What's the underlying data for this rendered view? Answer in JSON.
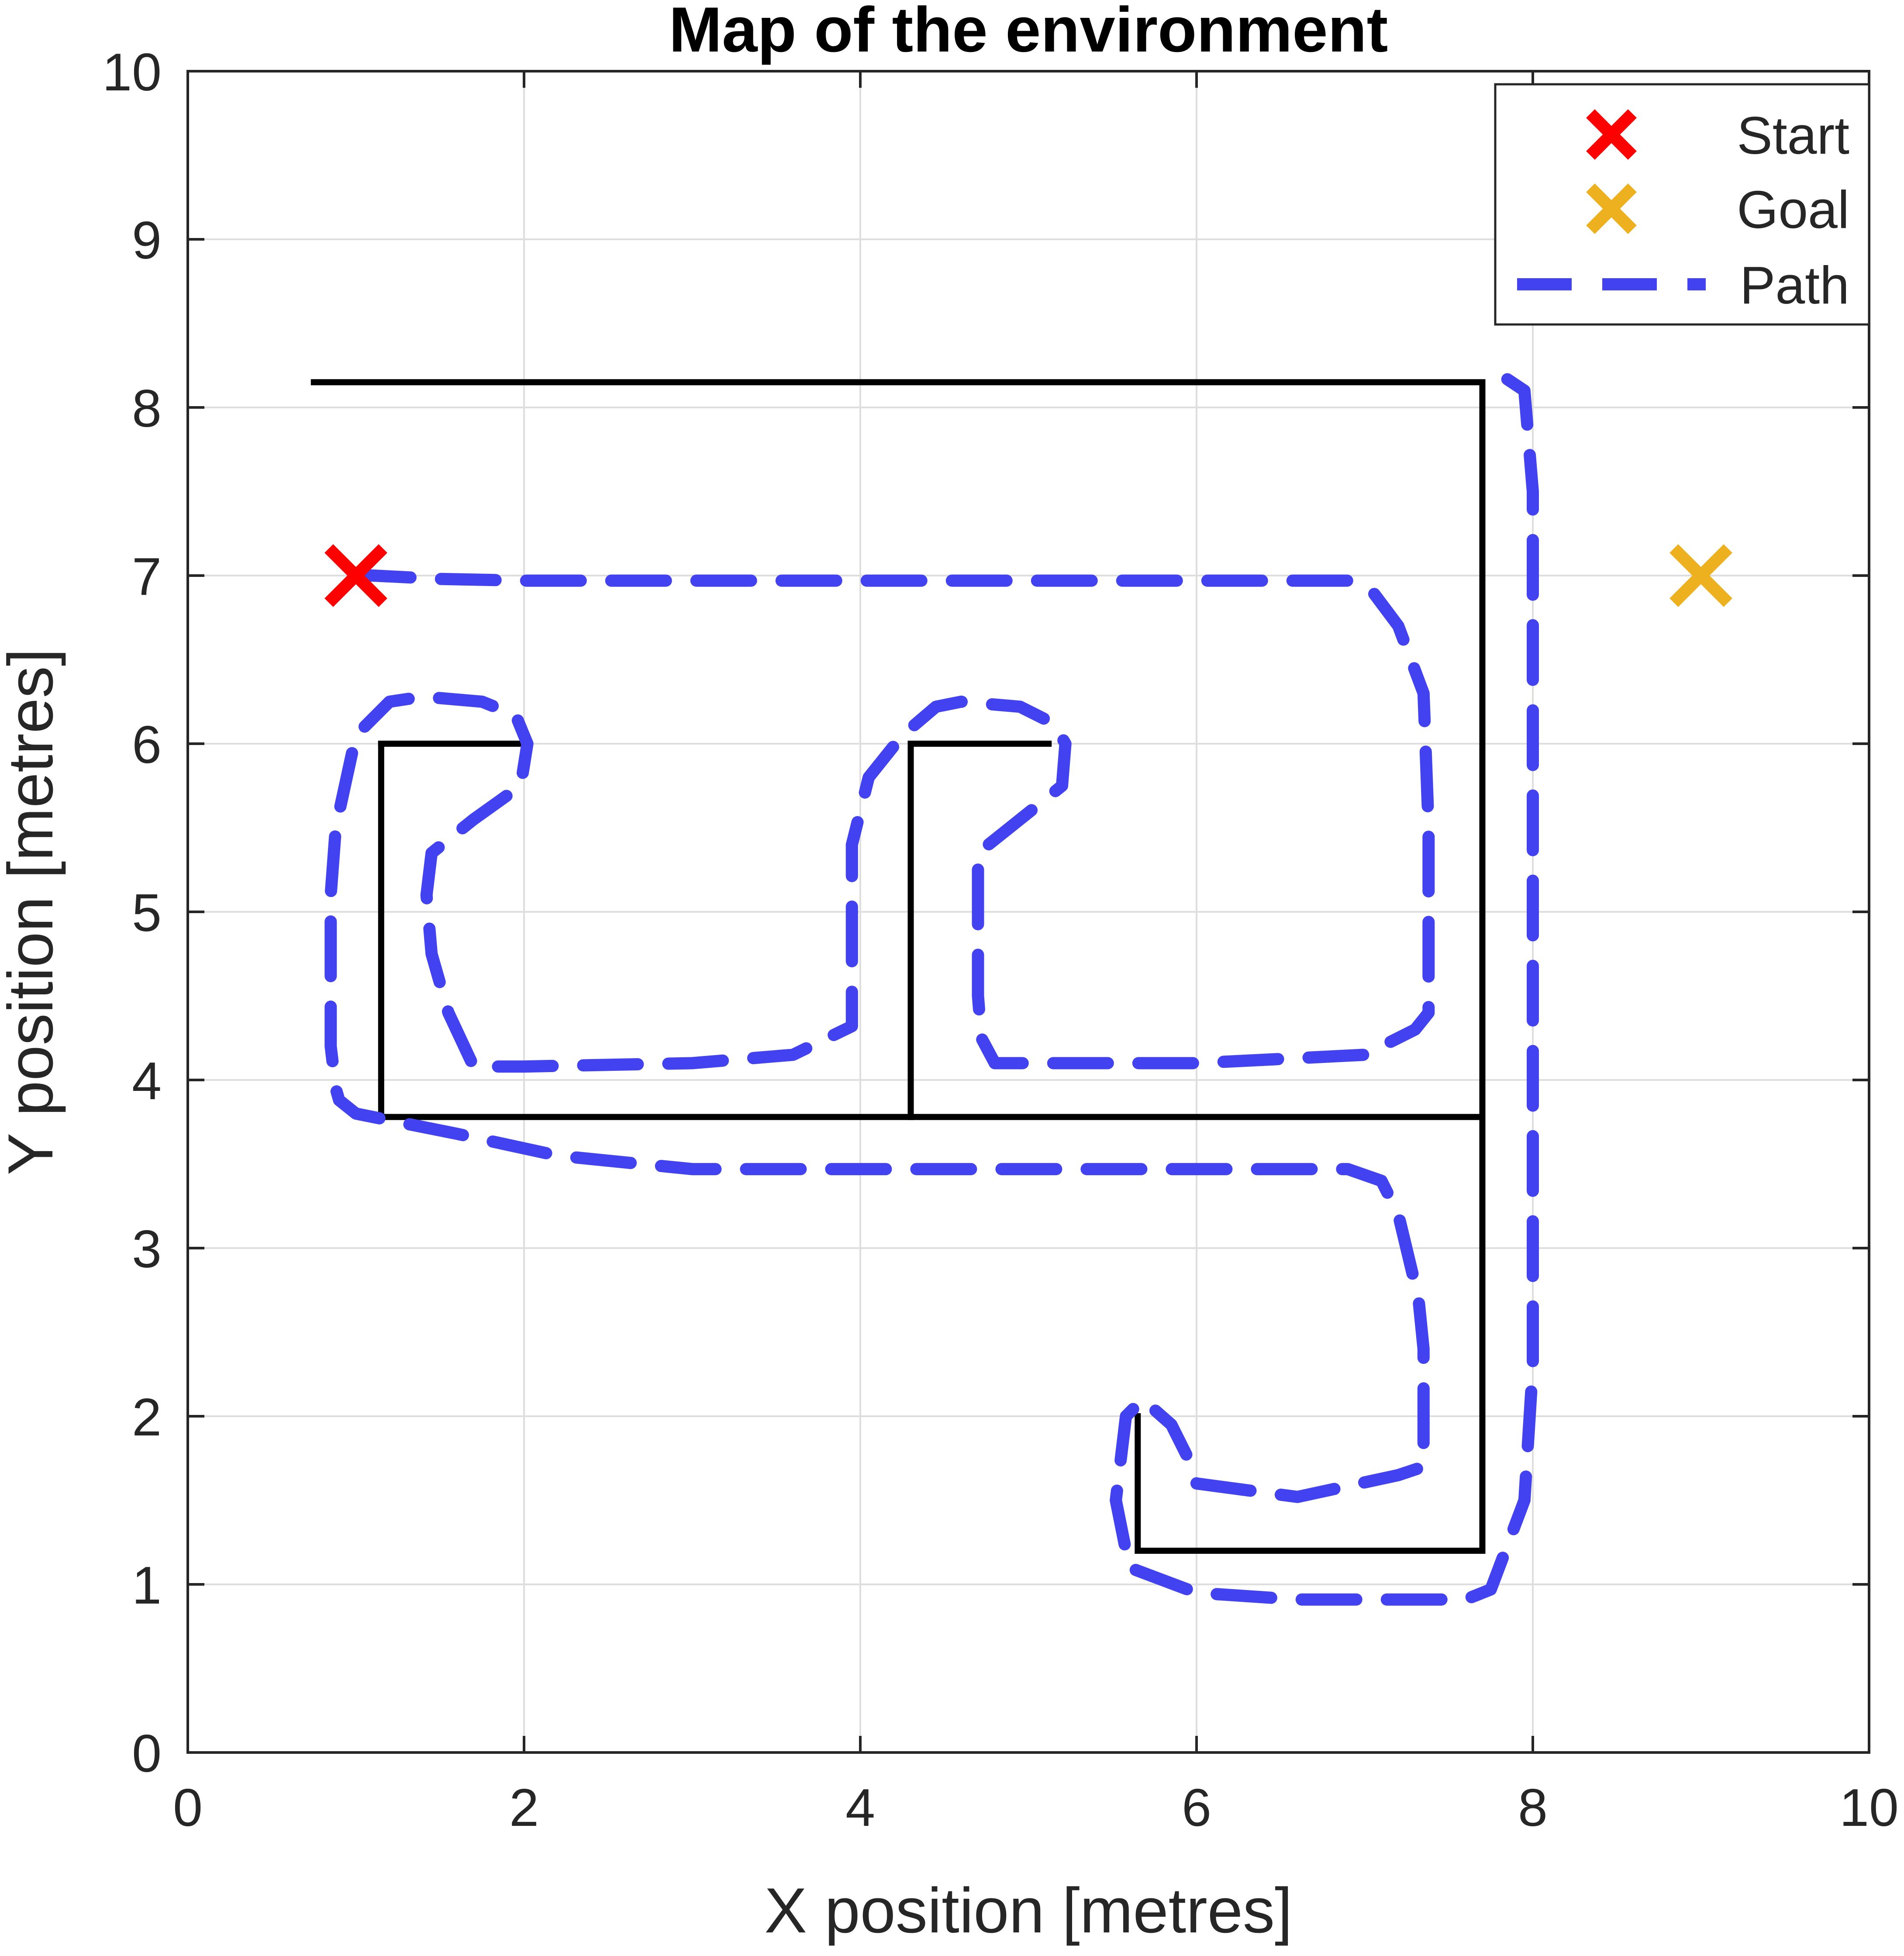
{
  "chart_data": {
    "type": "line",
    "title": "Map of the environment",
    "xlabel": "X position [metres]",
    "ylabel": "Y position [metres]",
    "xlim": [
      0,
      10
    ],
    "ylim": [
      0,
      10
    ],
    "xticks": [
      "0",
      "2",
      "4",
      "6",
      "8",
      "10"
    ],
    "yticks": [
      "0",
      "1",
      "2",
      "3",
      "4",
      "5",
      "6",
      "7",
      "8",
      "9",
      "10"
    ],
    "grid": true,
    "legend_position": "top-right",
    "legend": [
      {
        "label": "Start",
        "marker": "x",
        "color": "#FF0000"
      },
      {
        "label": "Goal",
        "marker": "x",
        "color": "#EDB120"
      },
      {
        "label": "Path",
        "style": "dashed",
        "color": "#4242F0"
      }
    ],
    "start": {
      "x": 1.0,
      "y": 7.0
    },
    "goal": {
      "x": 9.0,
      "y": 7.0
    },
    "walls": [
      [
        [
          0.75,
          8.15
        ],
        [
          7.7,
          8.15
        ],
        [
          7.7,
          1.2
        ],
        [
          5.65,
          1.2
        ],
        [
          5.65,
          2.0
        ]
      ],
      [
        [
          1.15,
          6.0
        ],
        [
          1.15,
          3.78
        ],
        [
          7.7,
          3.78
        ]
      ],
      [
        [
          1.15,
          6.0
        ],
        [
          1.98,
          6.0
        ]
      ],
      [
        [
          4.3,
          3.78
        ],
        [
          4.3,
          6.0
        ],
        [
          5.12,
          6.0
        ]
      ]
    ],
    "path": {
      "x": [
        1.0,
        1.1,
        1.5,
        2.0,
        3.0,
        4.0,
        5.0,
        6.0,
        6.9,
        7.05,
        7.2,
        7.35,
        7.38,
        7.38,
        7.3,
        7.0,
        6.0,
        5.0,
        4.8,
        4.72,
        4.7,
        4.7,
        4.95,
        5.2,
        5.22,
        5.15,
        4.95,
        4.6,
        4.45,
        4.25,
        4.05,
        3.95,
        3.95,
        3.95,
        3.6,
        3.0,
        2.0,
        1.7,
        1.55,
        1.45,
        1.42,
        1.45,
        1.7,
        1.98,
        2.02,
        1.95,
        1.75,
        1.4,
        1.2,
        1.0,
        0.88,
        0.85,
        0.85,
        0.88,
        0.9,
        1.0,
        1.2,
        1.6,
        2.2,
        3.0,
        4.0,
        5.0,
        6.0,
        6.9,
        7.1,
        7.2,
        7.32,
        7.35,
        7.35,
        7.2,
        6.6,
        6.0,
        5.95,
        5.85,
        5.68,
        5.58,
        5.52,
        5.6,
        6.0,
        6.6,
        7.0,
        7.6,
        7.75,
        7.95,
        8.0,
        8.0,
        8.0,
        7.95,
        7.8
      ],
      "y": [
        7.0,
        7.0,
        6.98,
        6.97,
        6.97,
        6.97,
        6.97,
        6.97,
        6.97,
        6.9,
        6.7,
        6.3,
        5.5,
        4.4,
        4.3,
        4.15,
        4.1,
        4.1,
        4.1,
        4.25,
        4.5,
        5.35,
        5.55,
        5.75,
        6.0,
        6.12,
        6.22,
        6.25,
        6.22,
        6.05,
        5.8,
        5.4,
        4.5,
        4.32,
        4.15,
        4.1,
        4.08,
        4.08,
        4.4,
        4.75,
        5.1,
        5.35,
        5.55,
        5.75,
        6.0,
        6.17,
        6.25,
        6.28,
        6.25,
        6.05,
        5.5,
        5.1,
        4.2,
        3.95,
        3.88,
        3.8,
        3.76,
        3.68,
        3.55,
        3.47,
        3.47,
        3.47,
        3.47,
        3.47,
        3.4,
        3.2,
        2.7,
        2.4,
        1.7,
        1.65,
        1.52,
        1.6,
        1.75,
        1.95,
        2.1,
        2.0,
        1.5,
        1.1,
        0.95,
        0.91,
        0.91,
        0.91,
        0.97,
        1.5,
        2.3,
        5.0,
        7.5,
        8.1,
        8.2
      ]
    }
  }
}
